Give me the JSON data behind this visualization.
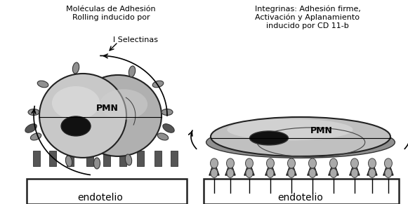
{
  "bg_color": "#ffffff",
  "left_label_line1": "Moléculas de Adhesión",
  "left_label_line2": "Rolling inducido por",
  "left_label_line3": "l Selectinas",
  "right_label_line1": "Integrinas: Adhesión firme,",
  "right_label_line2": "Activación y Aplanamiento",
  "right_label_line3": "inducido por CD 11-b",
  "endotelio_text": "endotelio",
  "pmn_text": "PMN",
  "cell_color_dark": "#a0a0a0",
  "cell_color_light": "#d0d0d0",
  "nucleus_color": "#1a1a1a",
  "receptor_color": "#909090",
  "receptor_edge": "#333333",
  "endo_spike_color": "#606060",
  "font_size_label": 8.0,
  "font_size_pmn": 9,
  "font_size_endotelio": 10
}
